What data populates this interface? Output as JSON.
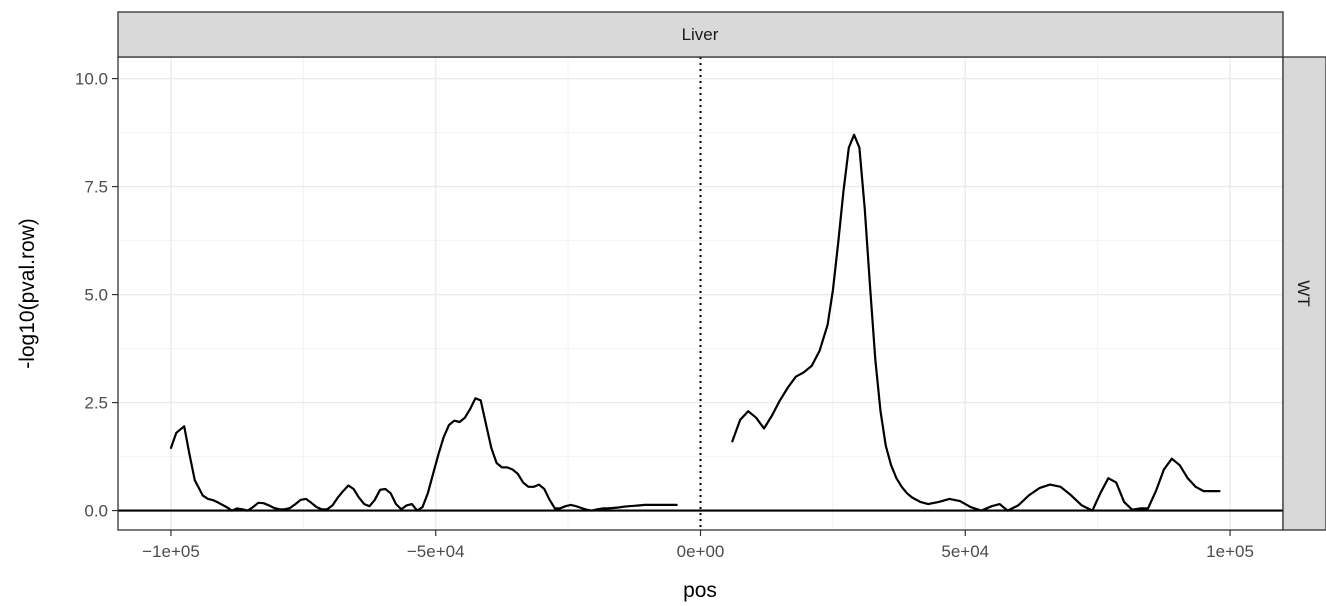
{
  "chart_data": {
    "type": "line",
    "facet_top_label": "Liver",
    "facet_right_label": "WT",
    "xlabel": "pos",
    "ylabel": "-log10(pval.row)",
    "xlim": [
      -110000,
      110000
    ],
    "ylim": [
      -0.45,
      10.5
    ],
    "x_ticks": [
      -100000,
      -50000,
      0,
      50000,
      100000
    ],
    "x_tick_labels": [
      "−1e+05",
      "−5e+04",
      "0e+00",
      "5e+04",
      "1e+05"
    ],
    "y_ticks": [
      0,
      2.5,
      5,
      7.5,
      10
    ],
    "y_tick_labels": [
      "0.0",
      "2.5",
      "5.0",
      "7.5",
      "10.0"
    ],
    "grid": true,
    "hline_y": 0,
    "vline_x": 0,
    "series": [
      {
        "x": [
          -100000,
          -99000,
          -97500,
          -96500,
          -95500,
          -94000,
          -93000,
          -92000,
          -91000,
          -89500,
          -88500,
          -87500,
          -86500,
          -85500,
          -84500,
          -83500,
          -82500,
          -81500,
          -80500,
          -79500,
          -78500,
          -77500,
          -76500,
          -75500,
          -74500,
          -73500,
          -72500,
          -71500,
          -70500,
          -69500,
          -68500,
          -67500,
          -66500,
          -65500,
          -64500,
          -63500,
          -62500,
          -61500,
          -60500,
          -59500,
          -58500,
          -57500,
          -56500,
          -55500,
          -54500,
          -53500,
          -52500,
          -51500,
          -50500,
          -49500,
          -48500,
          -47500,
          -46500,
          -45500,
          -44500,
          -43500,
          -42500,
          -41500,
          -40500,
          -39500,
          -38500,
          -37500,
          -36500,
          -35500,
          -34500,
          -33500,
          -32500,
          -31500,
          -30500,
          -29500,
          -28500,
          -27500,
          -26500,
          -25500,
          -24500,
          -23500,
          -22500,
          -21500,
          -20500,
          -19500,
          -18500,
          -17500,
          -16500,
          -15500,
          -14500,
          -13500,
          -12500,
          -11500,
          -10500,
          -9500,
          -8500,
          -7500,
          -6500,
          -5500,
          -4500
        ],
        "y": [
          1.45,
          1.8,
          1.95,
          1.3,
          0.7,
          0.35,
          0.27,
          0.24,
          0.18,
          0.08,
          0.0,
          0.05,
          0.03,
          0.0,
          0.08,
          0.18,
          0.17,
          0.12,
          0.06,
          0.03,
          0.03,
          0.06,
          0.15,
          0.25,
          0.27,
          0.18,
          0.08,
          0.03,
          0.03,
          0.12,
          0.3,
          0.45,
          0.58,
          0.5,
          0.3,
          0.15,
          0.1,
          0.25,
          0.48,
          0.5,
          0.4,
          0.15,
          0.03,
          0.12,
          0.15,
          0.0,
          0.08,
          0.4,
          0.85,
          1.3,
          1.7,
          1.98,
          2.08,
          2.05,
          2.15,
          2.35,
          2.6,
          2.55,
          2.0,
          1.45,
          1.1,
          1.0,
          1.0,
          0.95,
          0.85,
          0.65,
          0.55,
          0.55,
          0.6,
          0.5,
          0.25,
          0.05,
          0.05,
          0.1,
          0.13,
          0.1,
          0.06,
          0.02,
          0.0,
          0.03,
          0.05,
          0.05,
          0.06,
          0.07,
          0.09,
          0.1,
          0.11,
          0.12,
          0.13,
          0.13,
          0.13,
          0.13,
          0.13,
          0.13,
          0.13
        ]
      },
      {
        "x": [
          6000,
          7500,
          9000,
          10500,
          12000,
          13500,
          15000,
          16500,
          18000,
          19500,
          21000,
          22500,
          24000,
          25000,
          26000,
          27000,
          28000,
          29000,
          30000,
          31000,
          32000,
          33000,
          34000,
          35000,
          36000,
          37000,
          38000,
          39000,
          40000,
          41500,
          43000,
          45000,
          47000,
          49000,
          51000,
          53000,
          55000,
          56500,
          58000,
          60000,
          62000,
          64000,
          66000,
          68000,
          70000,
          72000,
          74000,
          75500,
          77000,
          78500,
          80000,
          81500,
          83000,
          84500,
          86000,
          87500,
          89000,
          90500,
          92000,
          93500,
          95000,
          96500,
          98000
        ],
        "y": [
          1.6,
          2.1,
          2.3,
          2.15,
          1.9,
          2.2,
          2.55,
          2.85,
          3.1,
          3.2,
          3.35,
          3.7,
          4.3,
          5.1,
          6.2,
          7.4,
          8.4,
          8.7,
          8.4,
          7.0,
          5.2,
          3.5,
          2.3,
          1.5,
          1.05,
          0.75,
          0.55,
          0.4,
          0.3,
          0.2,
          0.15,
          0.2,
          0.27,
          0.22,
          0.08,
          0.0,
          0.1,
          0.15,
          0.0,
          0.12,
          0.35,
          0.52,
          0.6,
          0.55,
          0.35,
          0.12,
          0.0,
          0.4,
          0.75,
          0.65,
          0.2,
          0.02,
          0.05,
          0.05,
          0.45,
          0.95,
          1.2,
          1.05,
          0.75,
          0.55,
          0.45,
          0.45,
          0.45
        ]
      }
    ]
  }
}
